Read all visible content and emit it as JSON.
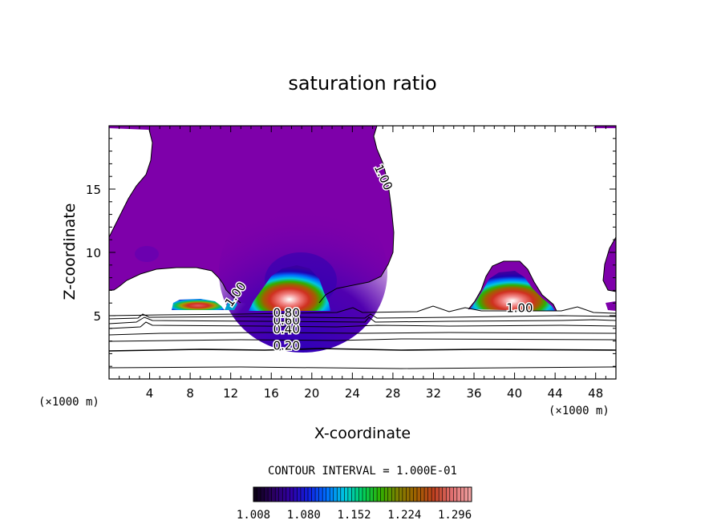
{
  "chart_data": {
    "type": "heatmap",
    "title": "saturation ratio",
    "xlabel": "X-coordinate",
    "ylabel": "Z-coordinate",
    "x_unit_left": "(×1000 m)",
    "x_unit_right": "(×1000 m)",
    "xlim": [
      0,
      50
    ],
    "ylim": [
      0,
      20
    ],
    "x_ticks": [
      4,
      8,
      12,
      16,
      20,
      24,
      28,
      32,
      36,
      40,
      44,
      48
    ],
    "y_ticks": [
      5,
      10,
      15
    ],
    "contour_interval_text": "CONTOUR INTERVAL = 1.000E-01",
    "contour_line_labels": [
      {
        "text": "0.20",
        "x": 17.5,
        "z": 2.3
      },
      {
        "text": "0.40",
        "x": 17.5,
        "z": 3.6
      },
      {
        "text": "0.60",
        "x": 17.5,
        "z": 4.3
      },
      {
        "text": "0.80",
        "x": 17.5,
        "z": 4.9
      },
      {
        "text": "1.00",
        "x": 40.5,
        "z": 5.3
      },
      {
        "text": "1.00",
        "x": 26.7,
        "z": 15.8,
        "rotate": 65
      },
      {
        "text": "1.00",
        "x": 12.8,
        "z": 6.5,
        "rotate": -55
      }
    ],
    "colorbar": {
      "tick_labels": [
        "1.008",
        "1.080",
        "1.152",
        "1.224",
        "1.296"
      ],
      "min": 1.008,
      "max": 1.32,
      "colors": [
        "#0c0018",
        "#2a0060",
        "#3000a8",
        "#1020e0",
        "#0070ff",
        "#00c8e0",
        "#00d060",
        "#30b000",
        "#808000",
        "#a06000",
        "#c04020",
        "#e07070",
        "#f0a0a0"
      ]
    },
    "supersaturated_regions": [
      {
        "x_range": [
          5.5,
          11.5
        ],
        "z_top": 6.2,
        "peak_value": 1.2
      },
      {
        "x_range": [
          13.8,
          21.5
        ],
        "z_top": 7.6,
        "peak_value": 1.3
      },
      {
        "x_range": [
          35.0,
          44.0
        ],
        "z_top": 7.4,
        "peak_value": 1.32
      }
    ],
    "grid": false,
    "legend": "bottom"
  }
}
